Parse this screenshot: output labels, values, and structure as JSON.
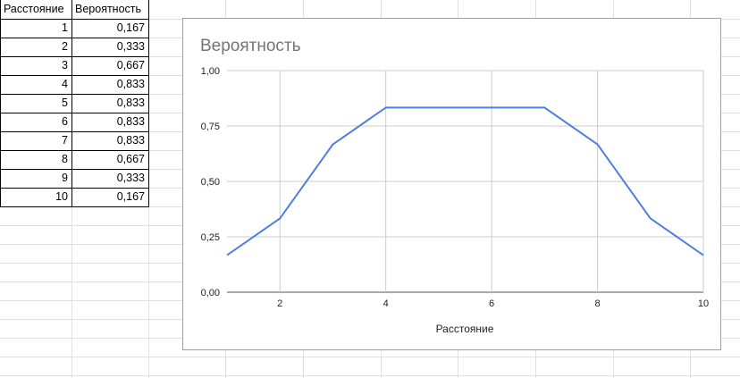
{
  "spreadsheet": {
    "headers": [
      "Расстояние",
      "Вероятность"
    ],
    "rows": [
      [
        "1",
        "0,167"
      ],
      [
        "2",
        "0,333"
      ],
      [
        "3",
        "0,667"
      ],
      [
        "4",
        "0,833"
      ],
      [
        "5",
        "0,833"
      ],
      [
        "6",
        "0,833"
      ],
      [
        "7",
        "0,833"
      ],
      [
        "8",
        "0,667"
      ],
      [
        "9",
        "0,333"
      ],
      [
        "10",
        "0,167"
      ]
    ]
  },
  "colors": {
    "series": "#4e7fe0",
    "gridline": "#e0e0e0",
    "cell_border": "#000000",
    "chart_border": "#9e9e9e"
  },
  "chart_data": {
    "type": "line",
    "title": "Вероятность",
    "xlabel": "Расстояние",
    "ylabel": "",
    "x": [
      1,
      2,
      3,
      4,
      5,
      6,
      7,
      8,
      9,
      10
    ],
    "series": [
      {
        "values": [
          0.167,
          0.333,
          0.667,
          0.833,
          0.833,
          0.833,
          0.833,
          0.667,
          0.333,
          0.167
        ]
      }
    ],
    "xlim": [
      1,
      10
    ],
    "ylim": [
      0,
      1
    ],
    "x_ticks": [
      "2",
      "4",
      "6",
      "8",
      "10"
    ],
    "y_ticks": [
      "0,00",
      "0,25",
      "0,50",
      "0,75",
      "1,00"
    ],
    "grid": true,
    "legend": "none"
  }
}
